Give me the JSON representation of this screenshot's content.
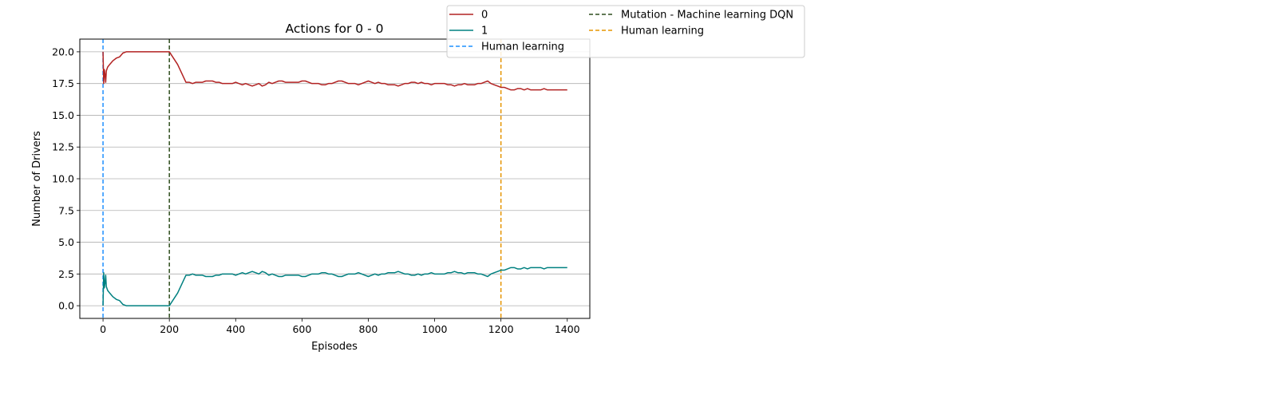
{
  "chart_data": {
    "type": "line",
    "title": "Actions for 0 - 0",
    "xlabel": "Episodes",
    "ylabel": "Number of Drivers",
    "xlim": [
      -70,
      1468
    ],
    "ylim": [
      -1.0,
      21.0
    ],
    "xticks": [
      0,
      200,
      400,
      600,
      800,
      1000,
      1200,
      1400
    ],
    "xtick_labels": [
      "0",
      "200",
      "400",
      "600",
      "800",
      "1000",
      "1200",
      "1400"
    ],
    "yticks": [
      0.0,
      2.5,
      5.0,
      7.5,
      10.0,
      12.5,
      15.0,
      17.5,
      20.0
    ],
    "ytick_labels": [
      "0.0",
      "2.5",
      "5.0",
      "7.5",
      "10.0",
      "12.5",
      "15.0",
      "17.5",
      "20.0"
    ],
    "grid": "horizontal",
    "legend_position": "top (outside plot, two columns)",
    "series": [
      {
        "name": "0",
        "color": "#b22222",
        "x": [
          0,
          2,
          4,
          6,
          8,
          10,
          14,
          20,
          30,
          40,
          50,
          60,
          70,
          80,
          100,
          120,
          150,
          180,
          200,
          225,
          250,
          260,
          270,
          280,
          290,
          300,
          310,
          320,
          330,
          340,
          350,
          360,
          370,
          380,
          390,
          400,
          410,
          420,
          430,
          440,
          450,
          460,
          470,
          480,
          490,
          500,
          510,
          520,
          530,
          540,
          550,
          560,
          570,
          580,
          590,
          600,
          610,
          620,
          630,
          640,
          650,
          660,
          670,
          680,
          690,
          700,
          710,
          720,
          730,
          740,
          750,
          760,
          770,
          780,
          790,
          800,
          810,
          820,
          830,
          840,
          850,
          860,
          870,
          880,
          890,
          900,
          910,
          920,
          930,
          940,
          950,
          960,
          970,
          980,
          990,
          1000,
          1010,
          1020,
          1030,
          1040,
          1050,
          1060,
          1070,
          1080,
          1090,
          1100,
          1110,
          1120,
          1130,
          1140,
          1150,
          1160,
          1170,
          1180,
          1190,
          1200,
          1210,
          1220,
          1230,
          1240,
          1250,
          1260,
          1270,
          1280,
          1290,
          1300,
          1310,
          1320,
          1330,
          1340,
          1350,
          1360,
          1370,
          1380,
          1390,
          1400
        ],
        "values": [
          20.0,
          17.5,
          18.6,
          18.2,
          17.6,
          18.5,
          18.8,
          19.0,
          19.3,
          19.5,
          19.6,
          19.9,
          20.0,
          20.0,
          20.0,
          20.0,
          20.0,
          20.0,
          20.0,
          19.0,
          17.6,
          17.6,
          17.5,
          17.6,
          17.6,
          17.6,
          17.7,
          17.7,
          17.7,
          17.6,
          17.6,
          17.5,
          17.5,
          17.5,
          17.5,
          17.6,
          17.5,
          17.4,
          17.5,
          17.4,
          17.3,
          17.4,
          17.5,
          17.3,
          17.4,
          17.6,
          17.5,
          17.6,
          17.7,
          17.7,
          17.6,
          17.6,
          17.6,
          17.6,
          17.6,
          17.7,
          17.7,
          17.6,
          17.5,
          17.5,
          17.5,
          17.4,
          17.4,
          17.5,
          17.5,
          17.6,
          17.7,
          17.7,
          17.6,
          17.5,
          17.5,
          17.5,
          17.4,
          17.5,
          17.6,
          17.7,
          17.6,
          17.5,
          17.6,
          17.5,
          17.5,
          17.4,
          17.4,
          17.4,
          17.3,
          17.4,
          17.5,
          17.5,
          17.6,
          17.6,
          17.5,
          17.6,
          17.5,
          17.5,
          17.4,
          17.5,
          17.5,
          17.5,
          17.5,
          17.4,
          17.4,
          17.3,
          17.4,
          17.4,
          17.5,
          17.4,
          17.4,
          17.4,
          17.5,
          17.5,
          17.6,
          17.7,
          17.5,
          17.4,
          17.3,
          17.2,
          17.2,
          17.1,
          17.0,
          17.0,
          17.1,
          17.1,
          17.0,
          17.1,
          17.0,
          17.0,
          17.0,
          17.0,
          17.1,
          17.0,
          17.0,
          17.0,
          17.0,
          17.0,
          17.0,
          17.0
        ]
      },
      {
        "name": "1",
        "color": "#008080",
        "x": [
          0,
          2,
          4,
          6,
          8,
          10,
          14,
          20,
          30,
          40,
          50,
          60,
          70,
          80,
          100,
          120,
          150,
          180,
          200,
          225,
          250,
          260,
          270,
          280,
          290,
          300,
          310,
          320,
          330,
          340,
          350,
          360,
          370,
          380,
          390,
          400,
          410,
          420,
          430,
          440,
          450,
          460,
          470,
          480,
          490,
          500,
          510,
          520,
          530,
          540,
          550,
          560,
          570,
          580,
          590,
          600,
          610,
          620,
          630,
          640,
          650,
          660,
          670,
          680,
          690,
          700,
          710,
          720,
          730,
          740,
          750,
          760,
          770,
          780,
          790,
          800,
          810,
          820,
          830,
          840,
          850,
          860,
          870,
          880,
          890,
          900,
          910,
          920,
          930,
          940,
          950,
          960,
          970,
          980,
          990,
          1000,
          1010,
          1020,
          1030,
          1040,
          1050,
          1060,
          1070,
          1080,
          1090,
          1100,
          1110,
          1120,
          1130,
          1140,
          1150,
          1160,
          1170,
          1180,
          1190,
          1200,
          1210,
          1220,
          1230,
          1240,
          1250,
          1260,
          1270,
          1280,
          1290,
          1300,
          1310,
          1320,
          1330,
          1340,
          1350,
          1360,
          1370,
          1380,
          1390,
          1400
        ],
        "values": [
          0.0,
          2.6,
          1.4,
          1.8,
          2.4,
          1.5,
          1.2,
          1.0,
          0.7,
          0.5,
          0.4,
          0.1,
          0.0,
          0.0,
          0.0,
          0.0,
          0.0,
          0.0,
          0.0,
          1.0,
          2.4,
          2.4,
          2.5,
          2.4,
          2.4,
          2.4,
          2.3,
          2.3,
          2.3,
          2.4,
          2.4,
          2.5,
          2.5,
          2.5,
          2.5,
          2.4,
          2.5,
          2.6,
          2.5,
          2.6,
          2.7,
          2.6,
          2.5,
          2.7,
          2.6,
          2.4,
          2.5,
          2.4,
          2.3,
          2.3,
          2.4,
          2.4,
          2.4,
          2.4,
          2.4,
          2.3,
          2.3,
          2.4,
          2.5,
          2.5,
          2.5,
          2.6,
          2.6,
          2.5,
          2.5,
          2.4,
          2.3,
          2.3,
          2.4,
          2.5,
          2.5,
          2.5,
          2.6,
          2.5,
          2.4,
          2.3,
          2.4,
          2.5,
          2.4,
          2.5,
          2.5,
          2.6,
          2.6,
          2.6,
          2.7,
          2.6,
          2.5,
          2.5,
          2.4,
          2.4,
          2.5,
          2.4,
          2.5,
          2.5,
          2.6,
          2.5,
          2.5,
          2.5,
          2.5,
          2.6,
          2.6,
          2.7,
          2.6,
          2.6,
          2.5,
          2.6,
          2.6,
          2.6,
          2.5,
          2.5,
          2.4,
          2.3,
          2.5,
          2.6,
          2.7,
          2.8,
          2.8,
          2.9,
          3.0,
          3.0,
          2.9,
          2.9,
          3.0,
          2.9,
          3.0,
          3.0,
          3.0,
          3.0,
          2.9,
          3.0,
          3.0,
          3.0,
          3.0,
          3.0,
          3.0,
          3.0
        ]
      }
    ],
    "vlines": [
      {
        "x": 0,
        "name": "Human learning",
        "color": "#1e90ff",
        "style": "dashed"
      },
      {
        "x": 200,
        "name": "Mutation - Machine learning DQN",
        "color": "#2f4f1f",
        "style": "dashed"
      },
      {
        "x": 1200,
        "name": "Human learning",
        "color": "#e69500",
        "style": "dashed"
      }
    ],
    "legend": {
      "columns": [
        [
          {
            "label": "0",
            "color": "#b22222",
            "style": "solid"
          },
          {
            "label": "1",
            "color": "#008080",
            "style": "solid"
          },
          {
            "label": "Human learning",
            "color": "#1e90ff",
            "style": "dashed"
          }
        ],
        [
          {
            "label": "Mutation - Machine learning DQN",
            "color": "#2f4f1f",
            "style": "dashed"
          },
          {
            "label": "Human learning",
            "color": "#e69500",
            "style": "dashed"
          }
        ]
      ]
    }
  }
}
